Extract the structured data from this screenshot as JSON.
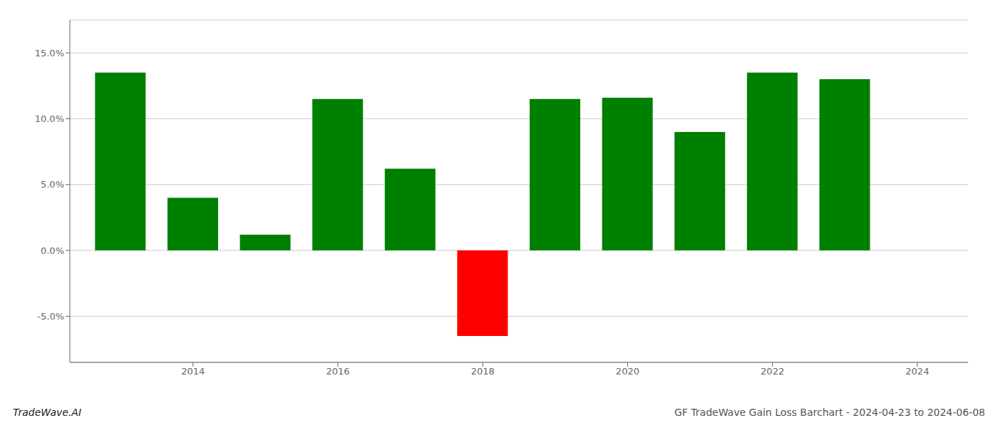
{
  "chart_data": {
    "type": "bar",
    "x": [
      2013,
      2014,
      2015,
      2016,
      2017,
      2018,
      2019,
      2020,
      2021,
      2022,
      2023
    ],
    "values": [
      0.135,
      0.04,
      0.012,
      0.115,
      0.062,
      -0.065,
      0.115,
      0.116,
      0.09,
      0.135,
      0.13
    ],
    "colors": [
      "#008000",
      "#008000",
      "#008000",
      "#008000",
      "#008000",
      "#ff0000",
      "#008000",
      "#008000",
      "#008000",
      "#008000",
      "#008000"
    ],
    "xlim": [
      2012.3,
      2024.7
    ],
    "xticks": [
      2014,
      2016,
      2018,
      2020,
      2022,
      2024
    ],
    "ylim": [
      -0.085,
      0.175
    ],
    "yticks": [
      {
        "value": -0.05,
        "label": "-5.0%"
      },
      {
        "value": 0.0,
        "label": "0.0%"
      },
      {
        "value": 0.05,
        "label": "5.0%"
      },
      {
        "value": 0.1,
        "label": "10.0%"
      },
      {
        "value": 0.15,
        "label": "15.0%"
      }
    ],
    "grid": true,
    "annotations": [
      "TradeWave.AI",
      "GF TradeWave Gain Loss Barchart - 2024-04-23 to 2024-06-08"
    ]
  }
}
